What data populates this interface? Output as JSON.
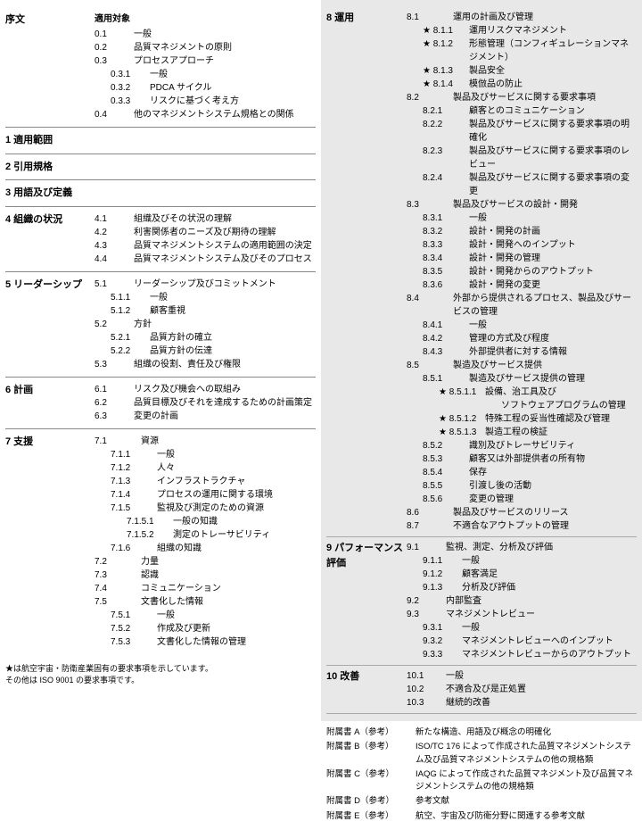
{
  "left": {
    "preface": {
      "title": "序文",
      "heading": "適用対象",
      "items": [
        [
          "0.1",
          "一般"
        ],
        [
          "0.2",
          "品質マネジメントの原則"
        ],
        [
          "0.3",
          "プロセスアプローチ"
        ],
        [
          "0.3.1",
          "一般",
          "ind1"
        ],
        [
          "0.3.2",
          "PDCA サイクル",
          "ind1"
        ],
        [
          "0.3.3",
          "リスクに基づく考え方",
          "ind1"
        ],
        [
          "0.4",
          "他のマネジメントシステム規格との関係"
        ]
      ]
    },
    "s1": "1  適用範囲",
    "s2": "2  引用規格",
    "s3": "3  用語及び定義",
    "s4": {
      "title": "4  組織の状況",
      "items": [
        [
          "4.1",
          "組織及びその状況の理解"
        ],
        [
          "4.2",
          "利害関係者のニーズ及び期待の理解"
        ],
        [
          "4.3",
          "品質マネジメントシステムの適用範囲の決定"
        ],
        [
          "4.4",
          "品質マネジメントシステム及びそのプロセス"
        ]
      ]
    },
    "s5": {
      "title": "5  リーダーシップ",
      "items": [
        [
          "5.1",
          "リーダーシップ及びコミットメント"
        ],
        [
          "5.1.1",
          "一般",
          "ind1"
        ],
        [
          "5.1.2",
          "顧客重視",
          "ind1"
        ],
        [
          "5.2",
          "方針"
        ],
        [
          "5.2.1",
          "品質方針の確立",
          "ind1"
        ],
        [
          "5.2.2",
          "品質方針の伝達",
          "ind1"
        ],
        [
          "5.3",
          "組織の役割、責任及び権限"
        ]
      ]
    },
    "s6": {
      "title": "6  計画",
      "items": [
        [
          "6.1",
          "リスク及び機会への取組み"
        ],
        [
          "6.2",
          "品質目標及びそれを達成するための計画策定"
        ],
        [
          "6.3",
          "変更の計画"
        ]
      ]
    },
    "s7": {
      "title": "7  支援",
      "items": [
        [
          "7.1",
          "資源"
        ],
        [
          "7.1.1",
          "一般",
          "ind1"
        ],
        [
          "7.1.2",
          "人々",
          "ind1"
        ],
        [
          "7.1.3",
          "インフラストラクチャ",
          "ind1"
        ],
        [
          "7.1.4",
          "プロセスの運用に関する環境",
          "ind1"
        ],
        [
          "7.1.5",
          "監視及び測定のための資源",
          "ind1"
        ],
        [
          "7.1.5.1",
          "一般の知識",
          "ind2"
        ],
        [
          "7.1.5.2",
          "測定のトレーサビリティ",
          "ind2"
        ],
        [
          "7.1.6",
          "組織の知識",
          "ind1"
        ],
        [
          "7.2",
          "力量"
        ],
        [
          "7.3",
          "認識"
        ],
        [
          "7.4",
          "コミュニケーション"
        ],
        [
          "7.5",
          "文書化した情報"
        ],
        [
          "7.5.1",
          "一般",
          "ind1"
        ],
        [
          "7.5.2",
          "作成及び更新",
          "ind1"
        ],
        [
          "7.5.3",
          "文書化した情報の管理",
          "ind1"
        ]
      ]
    },
    "footnote1": "★は航空宇宙・防衛産業固有の要求事項を示しています。",
    "footnote2": "その他は ISO 9001 の要求事項です。"
  },
  "right": {
    "s8": {
      "title": "8  運用",
      "items": [
        [
          "8.1",
          "運用の計画及び管理",
          "",
          ""
        ],
        [
          "8.1.1",
          "運用リスクマネジメント",
          "ind1",
          "star"
        ],
        [
          "8.1.2",
          "形態管理（コンフィギュレーションマネジメント）",
          "ind1",
          "star"
        ],
        [
          "8.1.3",
          "製品安全",
          "ind1",
          "star"
        ],
        [
          "8.1.4",
          "模倣品の防止",
          "ind1",
          "star"
        ],
        [
          "8.2",
          "製品及びサービスに関する要求事項",
          "",
          ""
        ],
        [
          "8.2.1",
          "顧客とのコミュニケーション",
          "ind1",
          ""
        ],
        [
          "8.2.2",
          "製品及びサービスに関する要求事項の明確化",
          "ind1",
          ""
        ],
        [
          "8.2.3",
          "製品及びサービスに関する要求事項のレビュー",
          "ind1",
          ""
        ],
        [
          "8.2.4",
          "製品及びサービスに関する要求事項の変更",
          "ind1",
          ""
        ],
        [
          "8.3",
          "製品及びサービスの設計・開発",
          "",
          ""
        ],
        [
          "8.3.1",
          "一般",
          "ind1",
          ""
        ],
        [
          "8.3.2",
          "設計・開発の計画",
          "ind1",
          ""
        ],
        [
          "8.3.3",
          "設計・開発へのインプット",
          "ind1",
          ""
        ],
        [
          "8.3.4",
          "設計・開発の管理",
          "ind1",
          ""
        ],
        [
          "8.3.5",
          "設計・開発からのアウトプット",
          "ind1",
          ""
        ],
        [
          "8.3.6",
          "設計・開発の変更",
          "ind1",
          ""
        ],
        [
          "8.4",
          "外部から提供されるプロセス、製品及びサービスの管理",
          "",
          ""
        ],
        [
          "8.4.1",
          "一般",
          "ind1",
          ""
        ],
        [
          "8.4.2",
          "管理の方式及び程度",
          "ind1",
          ""
        ],
        [
          "8.4.3",
          "外部提供者に対する情報",
          "ind1",
          ""
        ],
        [
          "8.5",
          "製造及びサービス提供",
          "",
          ""
        ],
        [
          "8.5.1",
          "製造及びサービス提供の管理",
          "ind1",
          ""
        ],
        [
          "8.5.1.1",
          "設備、治工具及び",
          "ind2",
          "star"
        ],
        [
          "",
          "ソフトウェアプログラムの管理",
          "ind3",
          ""
        ],
        [
          "8.5.1.2",
          "特殊工程の妥当性確認及び管理",
          "ind2",
          "star"
        ],
        [
          "8.5.1.3",
          "製造工程の検証",
          "ind2",
          "star"
        ],
        [
          "8.5.2",
          "識別及びトレーサビリティ",
          "ind1",
          ""
        ],
        [
          "8.5.3",
          "顧客又は外部提供者の所有物",
          "ind1",
          ""
        ],
        [
          "8.5.4",
          "保存",
          "ind1",
          ""
        ],
        [
          "8.5.5",
          "引渡し後の活動",
          "ind1",
          ""
        ],
        [
          "8.5.6",
          "変更の管理",
          "ind1",
          ""
        ],
        [
          "8.6",
          "製品及びサービスのリリース",
          "",
          ""
        ],
        [
          "8.7",
          "不適合なアウトプットの管理",
          "",
          ""
        ]
      ]
    },
    "s9": {
      "title": "9  パフォーマンス評価",
      "items": [
        [
          "9.1",
          "監視、測定、分析及び評価"
        ],
        [
          "9.1.1",
          "一般",
          "ind1"
        ],
        [
          "9.1.2",
          "顧客満足",
          "ind1"
        ],
        [
          "9.1.3",
          "分析及び評価",
          "ind1"
        ],
        [
          "9.2",
          "内部監査"
        ],
        [
          "9.3",
          "マネジメントレビュー"
        ],
        [
          "9.3.1",
          "一般",
          "ind1"
        ],
        [
          "9.3.2",
          "マネジメントレビューへのインプット",
          "ind1"
        ],
        [
          "9.3.3",
          "マネジメントレビューからのアウトプット",
          "ind1"
        ]
      ]
    },
    "s10": {
      "title": "10  改善",
      "items": [
        [
          "10.1",
          "一般"
        ],
        [
          "10.2",
          "不適合及び是正処置"
        ],
        [
          "10.3",
          "継続的改善"
        ]
      ]
    },
    "annex": [
      [
        "附属書 A（参考）",
        "新たな構造、用語及び概念の明確化"
      ],
      [
        "附属書 B（参考）",
        "ISO/TC 176 によって作成された品質マネジメントシステム及び品質マネジメントシステムの他の規格類"
      ],
      [
        "附属書 C（参考）",
        "IAQG によって作成された品質マネジメント及び品質マネジメントシステムの他の規格類"
      ],
      [
        "附属書 D（参考）",
        "参考文献"
      ],
      [
        "附属書 E（参考）",
        "航空、宇宙及び防衛分野に関連する参考文献"
      ]
    ]
  }
}
